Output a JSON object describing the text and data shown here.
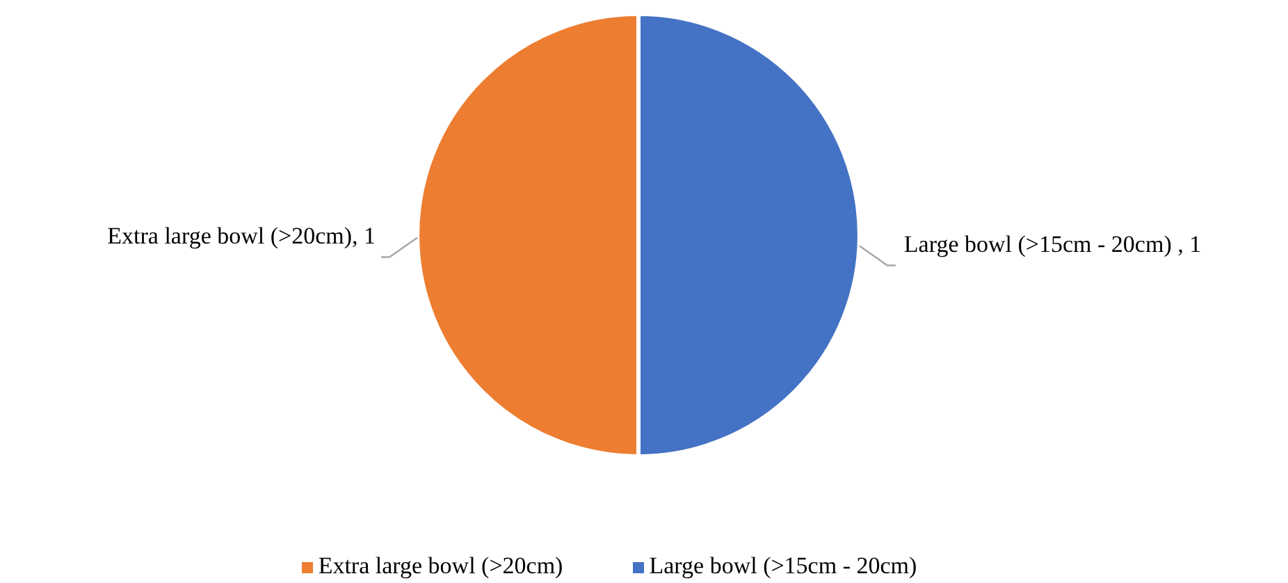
{
  "chart_data": {
    "type": "pie",
    "categories": [
      "Large bowl (>15cm - 20cm)",
      "Extra large bowl (>20cm)"
    ],
    "values": [
      1,
      1
    ],
    "colors": [
      "#4472c4",
      "#ed7d31"
    ],
    "value_labels": [
      "Large bowl (>15cm - 20cm) , 1",
      "Extra large bowl (>20cm), 1"
    ],
    "legend": "bottom"
  }
}
